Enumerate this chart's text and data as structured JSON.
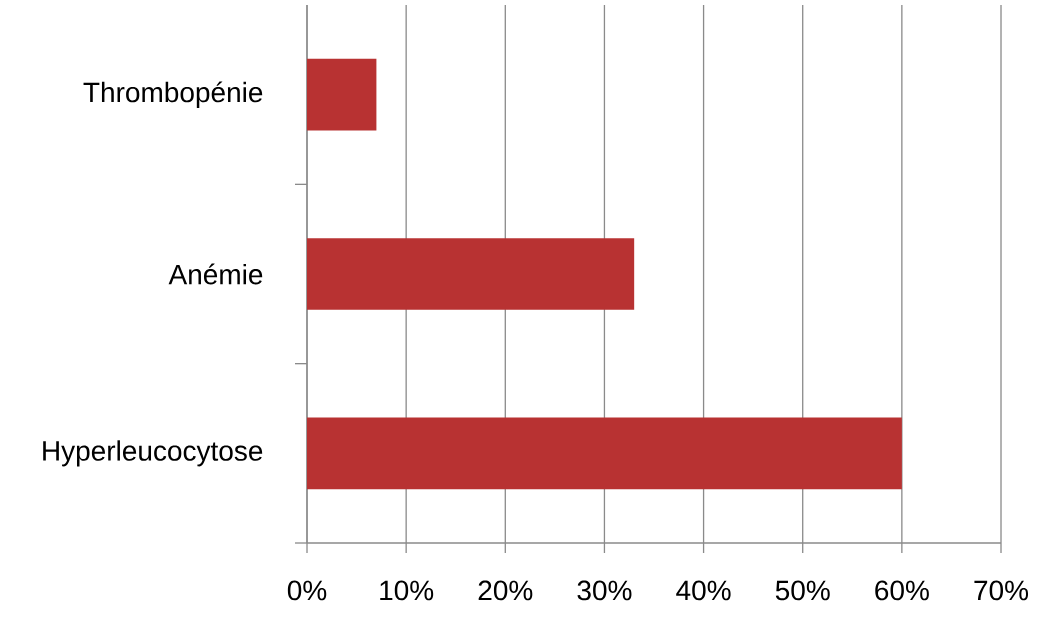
{
  "chart_data": {
    "type": "bar",
    "orientation": "horizontal",
    "categories": [
      "Thrombopénie",
      "Anémie",
      "Hyperleucocytose"
    ],
    "values": [
      7,
      33,
      60
    ],
    "color": "#b83232",
    "xlim": [
      0,
      70
    ],
    "xticks": [
      {
        "value": 0,
        "label": "0%"
      },
      {
        "value": 10,
        "label": "10%"
      },
      {
        "value": 20,
        "label": "20%"
      },
      {
        "value": 30,
        "label": "30%"
      },
      {
        "value": 40,
        "label": "40%"
      },
      {
        "value": 50,
        "label": "50%"
      },
      {
        "value": 60,
        "label": "60%"
      },
      {
        "value": 70,
        "label": "70%"
      }
    ],
    "grid": "x"
  }
}
